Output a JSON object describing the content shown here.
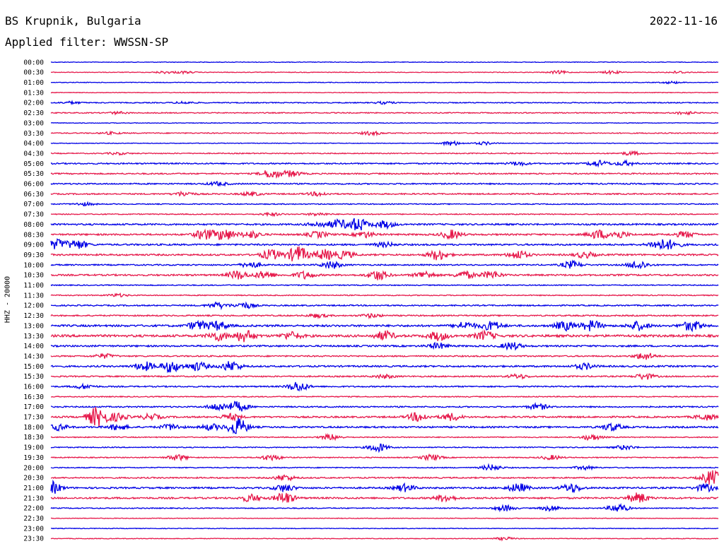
{
  "header": {
    "station": "BS Krupnik, Bulgaria",
    "date": "2022-11-16",
    "filter": "Applied filter: WWSSN-SP"
  },
  "channel_label": "HHZ - 20000",
  "colors": {
    "trace_a": "#0000e6",
    "trace_b": "#e6194b",
    "text": "#000000",
    "background": "#ffffff"
  },
  "time_labels": [
    "00:00",
    "00:30",
    "01:00",
    "01:30",
    "02:00",
    "02:30",
    "03:00",
    "03:30",
    "04:00",
    "04:30",
    "05:00",
    "05:30",
    "06:00",
    "06:30",
    "07:00",
    "07:30",
    "08:00",
    "08:30",
    "09:00",
    "09:30",
    "10:00",
    "10:30",
    "11:00",
    "11:30",
    "12:00",
    "12:30",
    "13:00",
    "13:30",
    "14:00",
    "14:30",
    "15:00",
    "15:30",
    "16:00",
    "16:30",
    "17:00",
    "17:30",
    "18:00",
    "18:30",
    "19:00",
    "19:30",
    "20:00",
    "20:30",
    "21:00",
    "21:30",
    "22:00",
    "22:30",
    "23:00",
    "23:30"
  ],
  "trace_activity": [
    {
      "noise": 1,
      "events": []
    },
    {
      "noise": 1,
      "events": [
        [
          0.17,
          1.5
        ],
        [
          0.2,
          1.5
        ],
        [
          0.76,
          2
        ],
        [
          0.84,
          2
        ],
        [
          0.94,
          1.5
        ]
      ]
    },
    {
      "noise": 1,
      "events": [
        [
          0.93,
          1.5
        ]
      ]
    },
    {
      "noise": 1,
      "events": []
    },
    {
      "noise": 1.5,
      "events": [
        [
          0.03,
          1.5
        ],
        [
          0.2,
          1.5
        ],
        [
          0.5,
          1.5
        ]
      ]
    },
    {
      "noise": 1.5,
      "events": [
        [
          0.1,
          1.5
        ],
        [
          0.95,
          2
        ]
      ]
    },
    {
      "noise": 1,
      "events": []
    },
    {
      "noise": 1.5,
      "events": [
        [
          0.48,
          2.5
        ],
        [
          0.09,
          1.5
        ]
      ]
    },
    {
      "noise": 1,
      "events": [
        [
          0.6,
          3
        ],
        [
          0.65,
          2
        ]
      ]
    },
    {
      "noise": 1.5,
      "events": [
        [
          0.1,
          1.5
        ],
        [
          0.87,
          2.5
        ]
      ]
    },
    {
      "noise": 2,
      "events": [
        [
          0.7,
          2.5
        ],
        [
          0.82,
          4
        ],
        [
          0.86,
          3
        ]
      ]
    },
    {
      "noise": 2,
      "events": [
        [
          0.33,
          6
        ],
        [
          0.36,
          4
        ]
      ]
    },
    {
      "noise": 2,
      "events": [
        [
          0.25,
          2.5
        ]
      ]
    },
    {
      "noise": 2,
      "events": [
        [
          0.2,
          3
        ],
        [
          0.3,
          2.5
        ],
        [
          0.4,
          2.5
        ]
      ]
    },
    {
      "noise": 1.5,
      "events": [
        [
          0.05,
          2
        ]
      ]
    },
    {
      "noise": 1.5,
      "events": [
        [
          0.33,
          2
        ],
        [
          0.4,
          2
        ]
      ]
    },
    {
      "noise": 2.5,
      "events": [
        [
          0.4,
          3
        ],
        [
          0.43,
          6
        ],
        [
          0.46,
          9
        ],
        [
          0.5,
          5
        ]
      ]
    },
    {
      "noise": 2.5,
      "events": [
        [
          0.23,
          7
        ],
        [
          0.26,
          8
        ],
        [
          0.3,
          5
        ],
        [
          0.4,
          4
        ],
        [
          0.47,
          4
        ],
        [
          0.6,
          6
        ],
        [
          0.82,
          6
        ],
        [
          0.85,
          5
        ],
        [
          0.95,
          4
        ]
      ]
    },
    {
      "noise": 2.5,
      "events": [
        [
          0.01,
          7
        ],
        [
          0.04,
          6
        ],
        [
          0.5,
          3
        ],
        [
          0.91,
          6
        ],
        [
          0.93,
          5
        ]
      ]
    },
    {
      "noise": 2.5,
      "events": [
        [
          0.33,
          7
        ],
        [
          0.37,
          12
        ],
        [
          0.41,
          7
        ],
        [
          0.44,
          5
        ],
        [
          0.58,
          7
        ],
        [
          0.7,
          6
        ],
        [
          0.8,
          4
        ]
      ]
    },
    {
      "noise": 2,
      "events": [
        [
          0.3,
          4
        ],
        [
          0.42,
          5
        ],
        [
          0.78,
          5
        ],
        [
          0.88,
          6
        ]
      ]
    },
    {
      "noise": 2.5,
      "events": [
        [
          0.28,
          6
        ],
        [
          0.32,
          5
        ],
        [
          0.38,
          5
        ],
        [
          0.49,
          7
        ],
        [
          0.56,
          5
        ],
        [
          0.62,
          5
        ],
        [
          0.66,
          5
        ]
      ]
    },
    {
      "noise": 1.5,
      "events": []
    },
    {
      "noise": 1.5,
      "events": [
        [
          0.1,
          2
        ]
      ]
    },
    {
      "noise": 2,
      "events": [
        [
          0.25,
          4
        ],
        [
          0.29,
          4
        ]
      ]
    },
    {
      "noise": 2,
      "events": [
        [
          0.4,
          2.5
        ],
        [
          0.48,
          2.5
        ]
      ]
    },
    {
      "noise": 3,
      "events": [
        [
          0.22,
          6
        ],
        [
          0.25,
          6
        ],
        [
          0.62,
          5
        ],
        [
          0.66,
          6
        ],
        [
          0.77,
          6
        ],
        [
          0.81,
          7
        ],
        [
          0.88,
          6
        ],
        [
          0.96,
          7
        ]
      ]
    },
    {
      "noise": 3.5,
      "events": [
        [
          0.25,
          6
        ],
        [
          0.29,
          8
        ],
        [
          0.36,
          5
        ],
        [
          0.5,
          6
        ],
        [
          0.58,
          6
        ],
        [
          0.65,
          6
        ]
      ]
    },
    {
      "noise": 2.5,
      "events": [
        [
          0.58,
          4
        ],
        [
          0.69,
          5
        ]
      ]
    },
    {
      "noise": 2,
      "events": [
        [
          0.08,
          3
        ],
        [
          0.89,
          5
        ]
      ]
    },
    {
      "noise": 2.5,
      "events": [
        [
          0.14,
          6
        ],
        [
          0.18,
          8
        ],
        [
          0.22,
          6
        ],
        [
          0.27,
          7
        ],
        [
          0.8,
          4
        ]
      ]
    },
    {
      "noise": 2,
      "events": [
        [
          0.5,
          2.5
        ],
        [
          0.7,
          3
        ],
        [
          0.89,
          4
        ]
      ]
    },
    {
      "noise": 2,
      "events": [
        [
          0.05,
          3
        ],
        [
          0.37,
          7
        ]
      ]
    },
    {
      "noise": 1.5,
      "events": []
    },
    {
      "noise": 2,
      "events": [
        [
          0.25,
          5
        ],
        [
          0.28,
          7
        ],
        [
          0.73,
          4
        ]
      ]
    },
    {
      "noise": 2.5,
      "events": [
        [
          0.07,
          14
        ],
        [
          0.1,
          5
        ],
        [
          0.15,
          4
        ],
        [
          0.27,
          4
        ],
        [
          0.55,
          6
        ],
        [
          0.6,
          5
        ],
        [
          0.98,
          4
        ]
      ]
    },
    {
      "noise": 2.5,
      "events": [
        [
          0.01,
          4
        ],
        [
          0.1,
          4
        ],
        [
          0.18,
          4
        ],
        [
          0.24,
          4
        ],
        [
          0.28,
          12
        ],
        [
          0.84,
          5
        ]
      ]
    },
    {
      "noise": 1.5,
      "events": [
        [
          0.42,
          4
        ],
        [
          0.81,
          4
        ]
      ]
    },
    {
      "noise": 1.5,
      "events": [
        [
          0.49,
          6
        ],
        [
          0.86,
          3
        ]
      ]
    },
    {
      "noise": 1.5,
      "events": [
        [
          0.19,
          4
        ],
        [
          0.33,
          4
        ],
        [
          0.57,
          4
        ],
        [
          0.75,
          3
        ]
      ]
    },
    {
      "noise": 1.5,
      "events": [
        [
          0.66,
          4
        ],
        [
          0.8,
          2.5
        ]
      ]
    },
    {
      "noise": 2,
      "events": [
        [
          0.35,
          4
        ],
        [
          0.99,
          10
        ]
      ]
    },
    {
      "noise": 2.5,
      "events": [
        [
          0.0,
          9
        ],
        [
          0.35,
          5
        ],
        [
          0.53,
          5
        ],
        [
          0.7,
          6
        ],
        [
          0.78,
          6
        ],
        [
          0.98,
          5
        ]
      ]
    },
    {
      "noise": 2.5,
      "events": [
        [
          0.3,
          5
        ],
        [
          0.35,
          8
        ],
        [
          0.59,
          5
        ],
        [
          0.88,
          7
        ]
      ]
    },
    {
      "noise": 1.5,
      "events": [
        [
          0.68,
          4
        ],
        [
          0.75,
          4
        ],
        [
          0.85,
          6
        ]
      ]
    },
    {
      "noise": 1,
      "events": []
    },
    {
      "noise": 1,
      "events": []
    },
    {
      "noise": 1,
      "events": [
        [
          0.68,
          2
        ]
      ]
    }
  ]
}
